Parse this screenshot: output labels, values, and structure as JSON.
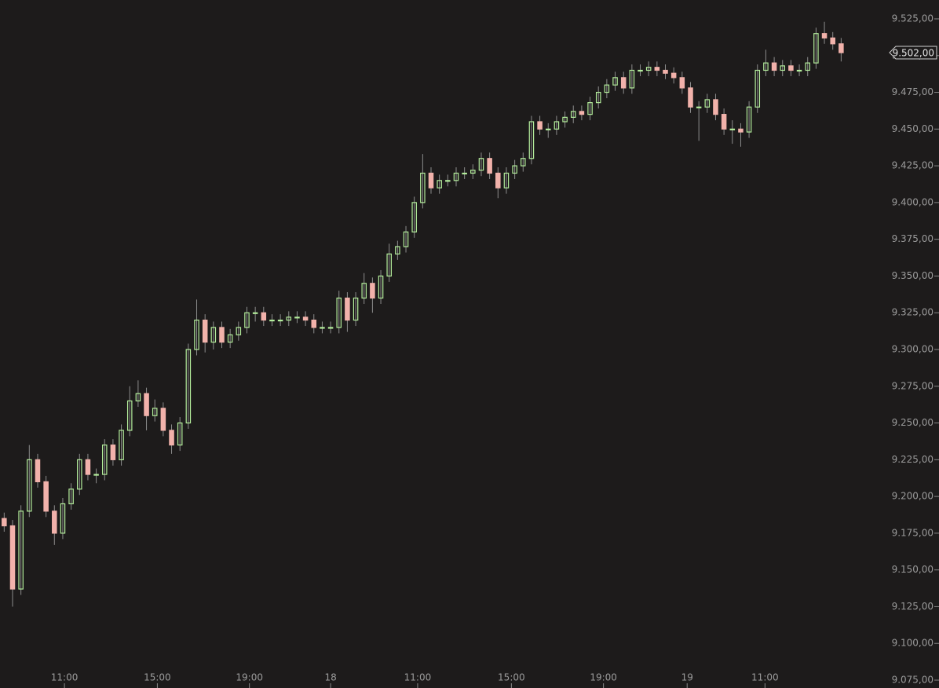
{
  "chart_data": {
    "type": "candlestick",
    "up_color": "#b4ee9c",
    "down_color": "#f2b2ab",
    "xlim": [
      0,
      106
    ],
    "xticks": [
      {
        "value": 7.7,
        "label": "11:00"
      },
      {
        "value": 18.8,
        "label": "15:00"
      },
      {
        "value": 29.8,
        "label": "19:00"
      },
      {
        "value": 39.5,
        "label": "18"
      },
      {
        "value": 49.9,
        "label": "11:00"
      },
      {
        "value": 61.1,
        "label": "15:00"
      },
      {
        "value": 72.1,
        "label": "19:00"
      },
      {
        "value": 82.1,
        "label": "19"
      },
      {
        "value": 91.4,
        "label": "11:00"
      }
    ],
    "ylim": [
      9075,
      9525
    ],
    "yticks": [
      {
        "value": 9075,
        "label": "9.075,00"
      },
      {
        "value": 9100,
        "label": "9.100,00"
      },
      {
        "value": 9125,
        "label": "9.125,00"
      },
      {
        "value": 9150,
        "label": "9.150,00"
      },
      {
        "value": 9175,
        "label": "9.175,00"
      },
      {
        "value": 9200,
        "label": "9.200,00"
      },
      {
        "value": 9225,
        "label": "9.225,00"
      },
      {
        "value": 9250,
        "label": "9.250,00"
      },
      {
        "value": 9275,
        "label": "9.275,00"
      },
      {
        "value": 9300,
        "label": "9.300,00"
      },
      {
        "value": 9325,
        "label": "9.325,00"
      },
      {
        "value": 9350,
        "label": "9.350,00"
      },
      {
        "value": 9375,
        "label": "9.375,00"
      },
      {
        "value": 9400,
        "label": "9.400,00"
      },
      {
        "value": 9425,
        "label": "9.425,00"
      },
      {
        "value": 9450,
        "label": "9.450,00"
      },
      {
        "value": 9475,
        "label": "9.475,00"
      },
      {
        "value": 9500,
        "label": "9.500,00"
      },
      {
        "value": 9525,
        "label": "9.525,00"
      }
    ],
    "last_price": {
      "value": 9502,
      "label": "9.502,00"
    },
    "open": [
      9185,
      9180,
      9137,
      9190,
      9225,
      9210,
      9190,
      9175,
      9195,
      9205,
      9225,
      9215,
      9215,
      9235,
      9225,
      9245,
      9265,
      9270,
      9255,
      9260,
      9245,
      9235,
      9250,
      9300,
      9320,
      9305,
      9315,
      9305,
      9310,
      9315,
      9325,
      9325,
      9320,
      9320,
      9320,
      9322,
      9322,
      9320,
      9315,
      9315,
      9315,
      9335,
      9320,
      9335,
      9345,
      9335,
      9350,
      9365,
      9370,
      9380,
      9400,
      9420,
      9410,
      9415,
      9415,
      9420,
      9420,
      9422,
      9430,
      9420,
      9410,
      9420,
      9425,
      9430,
      9455,
      9450,
      9450,
      9455,
      9458,
      9462,
      9460,
      9468,
      9475,
      9480,
      9485,
      9478,
      9490,
      9490,
      9492,
      9490,
      9488,
      9485,
      9478,
      9465,
      9465,
      9470,
      9460,
      9450,
      9450,
      9448,
      9465,
      9490,
      9495,
      9490,
      9493,
      9490,
      9490,
      9495,
      9515,
      9512,
      9508
    ],
    "high": [
      9189,
      9184,
      9194,
      9235,
      9229,
      9214,
      9194,
      9199,
      9209,
      9229,
      9229,
      9219,
      9239,
      9239,
      9249,
      9275,
      9279,
      9274,
      9266,
      9264,
      9249,
      9254,
      9304,
      9334,
      9324,
      9319,
      9319,
      9314,
      9319,
      9329,
      9329,
      9329,
      9324,
      9324,
      9326,
      9326,
      9326,
      9324,
      9319,
      9319,
      9340,
      9339,
      9339,
      9352,
      9349,
      9354,
      9372,
      9374,
      9384,
      9404,
      9433,
      9424,
      9419,
      9419,
      9424,
      9424,
      9426,
      9434,
      9434,
      9424,
      9424,
      9429,
      9434,
      9459,
      9459,
      9454,
      9459,
      9462,
      9466,
      9466,
      9472,
      9479,
      9484,
      9489,
      9489,
      9494,
      9494,
      9496,
      9496,
      9494,
      9492,
      9489,
      9482,
      9469,
      9474,
      9474,
      9464,
      9456,
      9454,
      9469,
      9494,
      9504,
      9499,
      9497,
      9497,
      9494,
      9499,
      9519,
      9523,
      9516,
      9512
    ],
    "low": [
      9176,
      9125,
      9133,
      9186,
      9206,
      9186,
      9167,
      9171,
      9191,
      9201,
      9211,
      9209,
      9211,
      9221,
      9221,
      9241,
      9261,
      9245,
      9251,
      9241,
      9229,
      9231,
      9246,
      9296,
      9298,
      9300,
      9301,
      9301,
      9306,
      9311,
      9319,
      9316,
      9316,
      9316,
      9316,
      9318,
      9316,
      9311,
      9311,
      9311,
      9311,
      9312,
      9316,
      9331,
      9325,
      9331,
      9346,
      9361,
      9366,
      9376,
      9396,
      9406,
      9406,
      9411,
      9411,
      9416,
      9416,
      9418,
      9416,
      9403,
      9406,
      9416,
      9421,
      9426,
      9446,
      9444,
      9446,
      9451,
      9454,
      9456,
      9456,
      9464,
      9471,
      9476,
      9474,
      9474,
      9486,
      9486,
      9486,
      9484,
      9481,
      9474,
      9461,
      9442,
      9461,
      9456,
      9446,
      9440,
      9438,
      9444,
      9461,
      9486,
      9486,
      9486,
      9486,
      9486,
      9486,
      9491,
      9508,
      9504,
      9496
    ],
    "close": [
      9180,
      9137,
      9190,
      9225,
      9210,
      9190,
      9175,
      9195,
      9205,
      9225,
      9215,
      9215,
      9235,
      9225,
      9245,
      9265,
      9270,
      9255,
      9260,
      9245,
      9235,
      9250,
      9300,
      9320,
      9305,
      9315,
      9305,
      9310,
      9315,
      9325,
      9325,
      9320,
      9320,
      9320,
      9322,
      9322,
      9320,
      9315,
      9315,
      9315,
      9335,
      9320,
      9335,
      9345,
      9335,
      9350,
      9365,
      9370,
      9380,
      9400,
      9420,
      9410,
      9415,
      9415,
      9420,
      9420,
      9422,
      9430,
      9420,
      9410,
      9420,
      9425,
      9430,
      9455,
      9450,
      9450,
      9455,
      9458,
      9462,
      9460,
      9468,
      9475,
      9480,
      9485,
      9478,
      9490,
      9490,
      9492,
      9490,
      9488,
      9485,
      9478,
      9465,
      9465,
      9470,
      9460,
      9450,
      9450,
      9448,
      9465,
      9490,
      9495,
      9490,
      9493,
      9490,
      9490,
      9495,
      9515,
      9512,
      9508,
      9502
    ]
  }
}
